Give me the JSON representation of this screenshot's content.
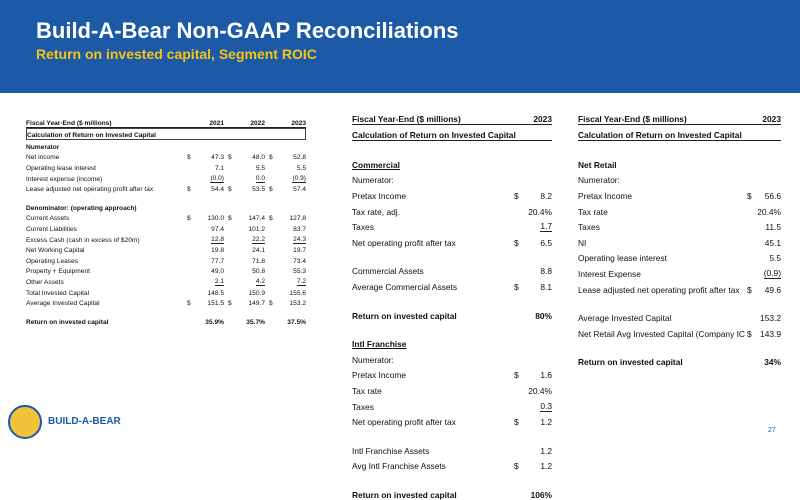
{
  "header": {
    "title": "Build-A-Bear Non-GAAP Reconciliations",
    "subtitle": "Return on invested capital, Segment ROIC"
  },
  "tables": [
    {
      "header": [
        "Fiscal Year-End ($ millions)",
        "2021",
        "2022",
        "2023"
      ],
      "groups": [
        [
          {
            "label": "Calculation of Return on Invested Capital",
            "bold": true,
            "boxed": true
          },
          {
            "label": "Numerator",
            "bold": true
          },
          {
            "label": "Net income",
            "cells": [
              [
                "$",
                "47.3"
              ],
              [
                "$",
                "48.0"
              ],
              [
                "$",
                "52.8"
              ]
            ]
          },
          {
            "label": "Operating lease interest",
            "cells": [
              "7.1",
              "5.5",
              "5.5"
            ]
          },
          {
            "label": "Interest expense (income)",
            "cells": [
              "(0.0)",
              "0.0",
              "(0.9)"
            ],
            "rule": true
          },
          {
            "label": "Lease adjusted net operating profit after tax",
            "cells": [
              [
                "$",
                "54.4"
              ],
              [
                "$",
                "53.5"
              ],
              [
                "$",
                "57.4"
              ]
            ]
          }
        ],
        [
          {
            "label": "Denominator: (operating approach)",
            "bold": true
          },
          {
            "label": "Current Assets",
            "cells": [
              [
                "$",
                "130.0"
              ],
              [
                "$",
                "147.4"
              ],
              [
                "$",
                "127.8"
              ]
            ]
          },
          {
            "label": "Current Liabilities",
            "cells": [
              "97.4",
              "101.2",
              "83.7"
            ]
          },
          {
            "label": "Excess Cash (cash in excess of $20m)",
            "cells": [
              "12.8",
              "22.2",
              "24.3"
            ],
            "rule": true
          },
          {
            "label": "Net Working Capital",
            "cells": [
              "19.8",
              "24.1",
              "19.7"
            ]
          },
          {
            "label": "Operating Leases",
            "cells": [
              "77.7",
              "71.8",
              "73.4"
            ]
          },
          {
            "label": "Property + Equipment",
            "cells": [
              "49.0",
              "50.8",
              "55.3"
            ]
          },
          {
            "label": "Other Assets",
            "cells": [
              "2.1",
              "4.2",
              "7.2"
            ],
            "rule": true
          },
          {
            "label": "Total Invested Capital",
            "cells": [
              "148.5",
              "150.9",
              "155.6"
            ]
          },
          {
            "label": "Average Invested Capital",
            "cells": [
              [
                "$",
                "151.5"
              ],
              [
                "$",
                "149.7"
              ],
              [
                "$",
                "153.2"
              ]
            ]
          }
        ],
        [
          {
            "label": "Return on invested capital",
            "cells": [
              "35.9%",
              "35.7%",
              "37.5%"
            ],
            "bold": true
          }
        ]
      ]
    },
    {
      "header": [
        "Fiscal Year-End ($ millions)",
        "2023"
      ],
      "groups": [
        [
          {
            "label": "Calculation of Return on Invested Capital",
            "bold": true
          }
        ],
        [
          {
            "label": "Commercial",
            "bold": true,
            "underline": true
          },
          {
            "label": "Numerator:"
          },
          {
            "label": "Pretax Income",
            "cells": [
              [
                "$",
                "8.2"
              ]
            ]
          },
          {
            "label": "Tax rate, adj.",
            "cells": [
              "20.4%"
            ]
          },
          {
            "label": "Taxes",
            "cells": [
              "1.7"
            ],
            "rule": true
          },
          {
            "label": "Net operating profit after tax",
            "cells": [
              [
                "$",
                "6.5"
              ]
            ]
          }
        ],
        [
          {
            "label": "Commercial Assets",
            "cells": [
              "8.8"
            ]
          },
          {
            "label": "Average Commercial Assets",
            "cells": [
              [
                "$",
                "8.1"
              ]
            ]
          }
        ],
        [
          {
            "label": "Return on invested capital",
            "cells": [
              "80%"
            ],
            "bold": true
          }
        ],
        [
          {
            "label": "Intl Franchise",
            "bold": true,
            "underline": true
          },
          {
            "label": "Numerator:"
          },
          {
            "label": "Pretax Income",
            "cells": [
              [
                "$",
                "1.6"
              ]
            ]
          },
          {
            "label": "Tax rate",
            "cells": [
              "20.4%"
            ]
          },
          {
            "label": "Taxes",
            "cells": [
              "0.3"
            ],
            "rule": true
          },
          {
            "label": "Net operating profit after tax",
            "cells": [
              [
                "$",
                "1.2"
              ]
            ]
          }
        ],
        [
          {
            "label": "Intl Franchise Assets",
            "cells": [
              "1.2"
            ]
          },
          {
            "label": "Avg Intl Franchise Assets",
            "cells": [
              [
                "$",
                "1.2"
              ]
            ]
          }
        ],
        [
          {
            "label": "Return on invested capital",
            "cells": [
              "106%"
            ],
            "bold": true
          }
        ]
      ]
    },
    {
      "header": [
        "Fiscal Year-End ($ millions)",
        "2023"
      ],
      "groups": [
        [
          {
            "label": "Calculation of Return on Invested Capital",
            "bold": true
          }
        ],
        [
          {
            "label": "Net Retail",
            "bold": true
          },
          {
            "label": "Numerator:"
          },
          {
            "label": "Pretax Income",
            "cells": [
              [
                "$",
                "56.6"
              ]
            ]
          },
          {
            "label": "Tax rate",
            "cells": [
              "20.4%"
            ]
          },
          {
            "label": "Taxes",
            "cells": [
              "11.5"
            ]
          },
          {
            "label": "NI",
            "cells": [
              "45.1"
            ]
          },
          {
            "label": "Operating lease interest",
            "cells": [
              "5.5"
            ]
          },
          {
            "label": "Interest Expense",
            "cells": [
              "(0.9)"
            ],
            "rule": true
          },
          {
            "label": "Lease adjusted net operating profit after tax",
            "cells": [
              [
                "$",
                "49.6"
              ]
            ]
          }
        ],
        [
          {
            "label": "Average Invested Capital",
            "cells": [
              "153.2"
            ]
          },
          {
            "label": "Net Retail Avg Invested Capital (Company IC l",
            "cells": [
              [
                "$",
                "143.9"
              ]
            ]
          }
        ],
        [
          {
            "label": "Return on invested capital",
            "cells": [
              "34%"
            ],
            "bold": true
          }
        ]
      ]
    }
  ],
  "footer": {
    "logo": "BUILD-A-BEAR",
    "page": "27"
  }
}
